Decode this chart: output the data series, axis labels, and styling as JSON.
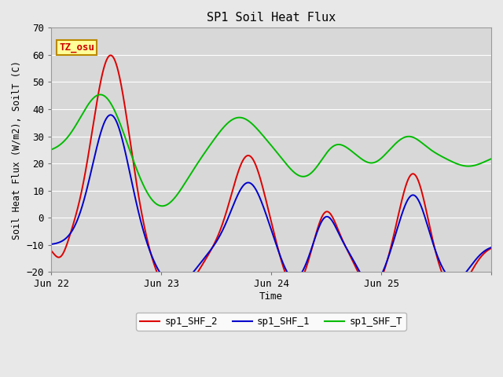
{
  "title": "SP1 Soil Heat Flux",
  "xlabel": "Time",
  "ylabel": "Soil Heat Flux (W/m2), SoilT (C)",
  "ylim": [
    -20,
    70
  ],
  "fig_bg": "#e8e8e8",
  "axes_bg": "#d8d8d8",
  "grid_color": "#ffffff",
  "annotation_text": "TZ_osu",
  "annotation_bg": "#ffff99",
  "annotation_border": "#bb8800",
  "annotation_text_color": "#cc0000",
  "legend_colors": [
    "#dd0000",
    "#0000cc",
    "#00bb00"
  ],
  "legend_labels": [
    "sp1_SHF_2",
    "sp1_SHF_1",
    "sp1_SHF_T"
  ],
  "line_width": 1.4
}
